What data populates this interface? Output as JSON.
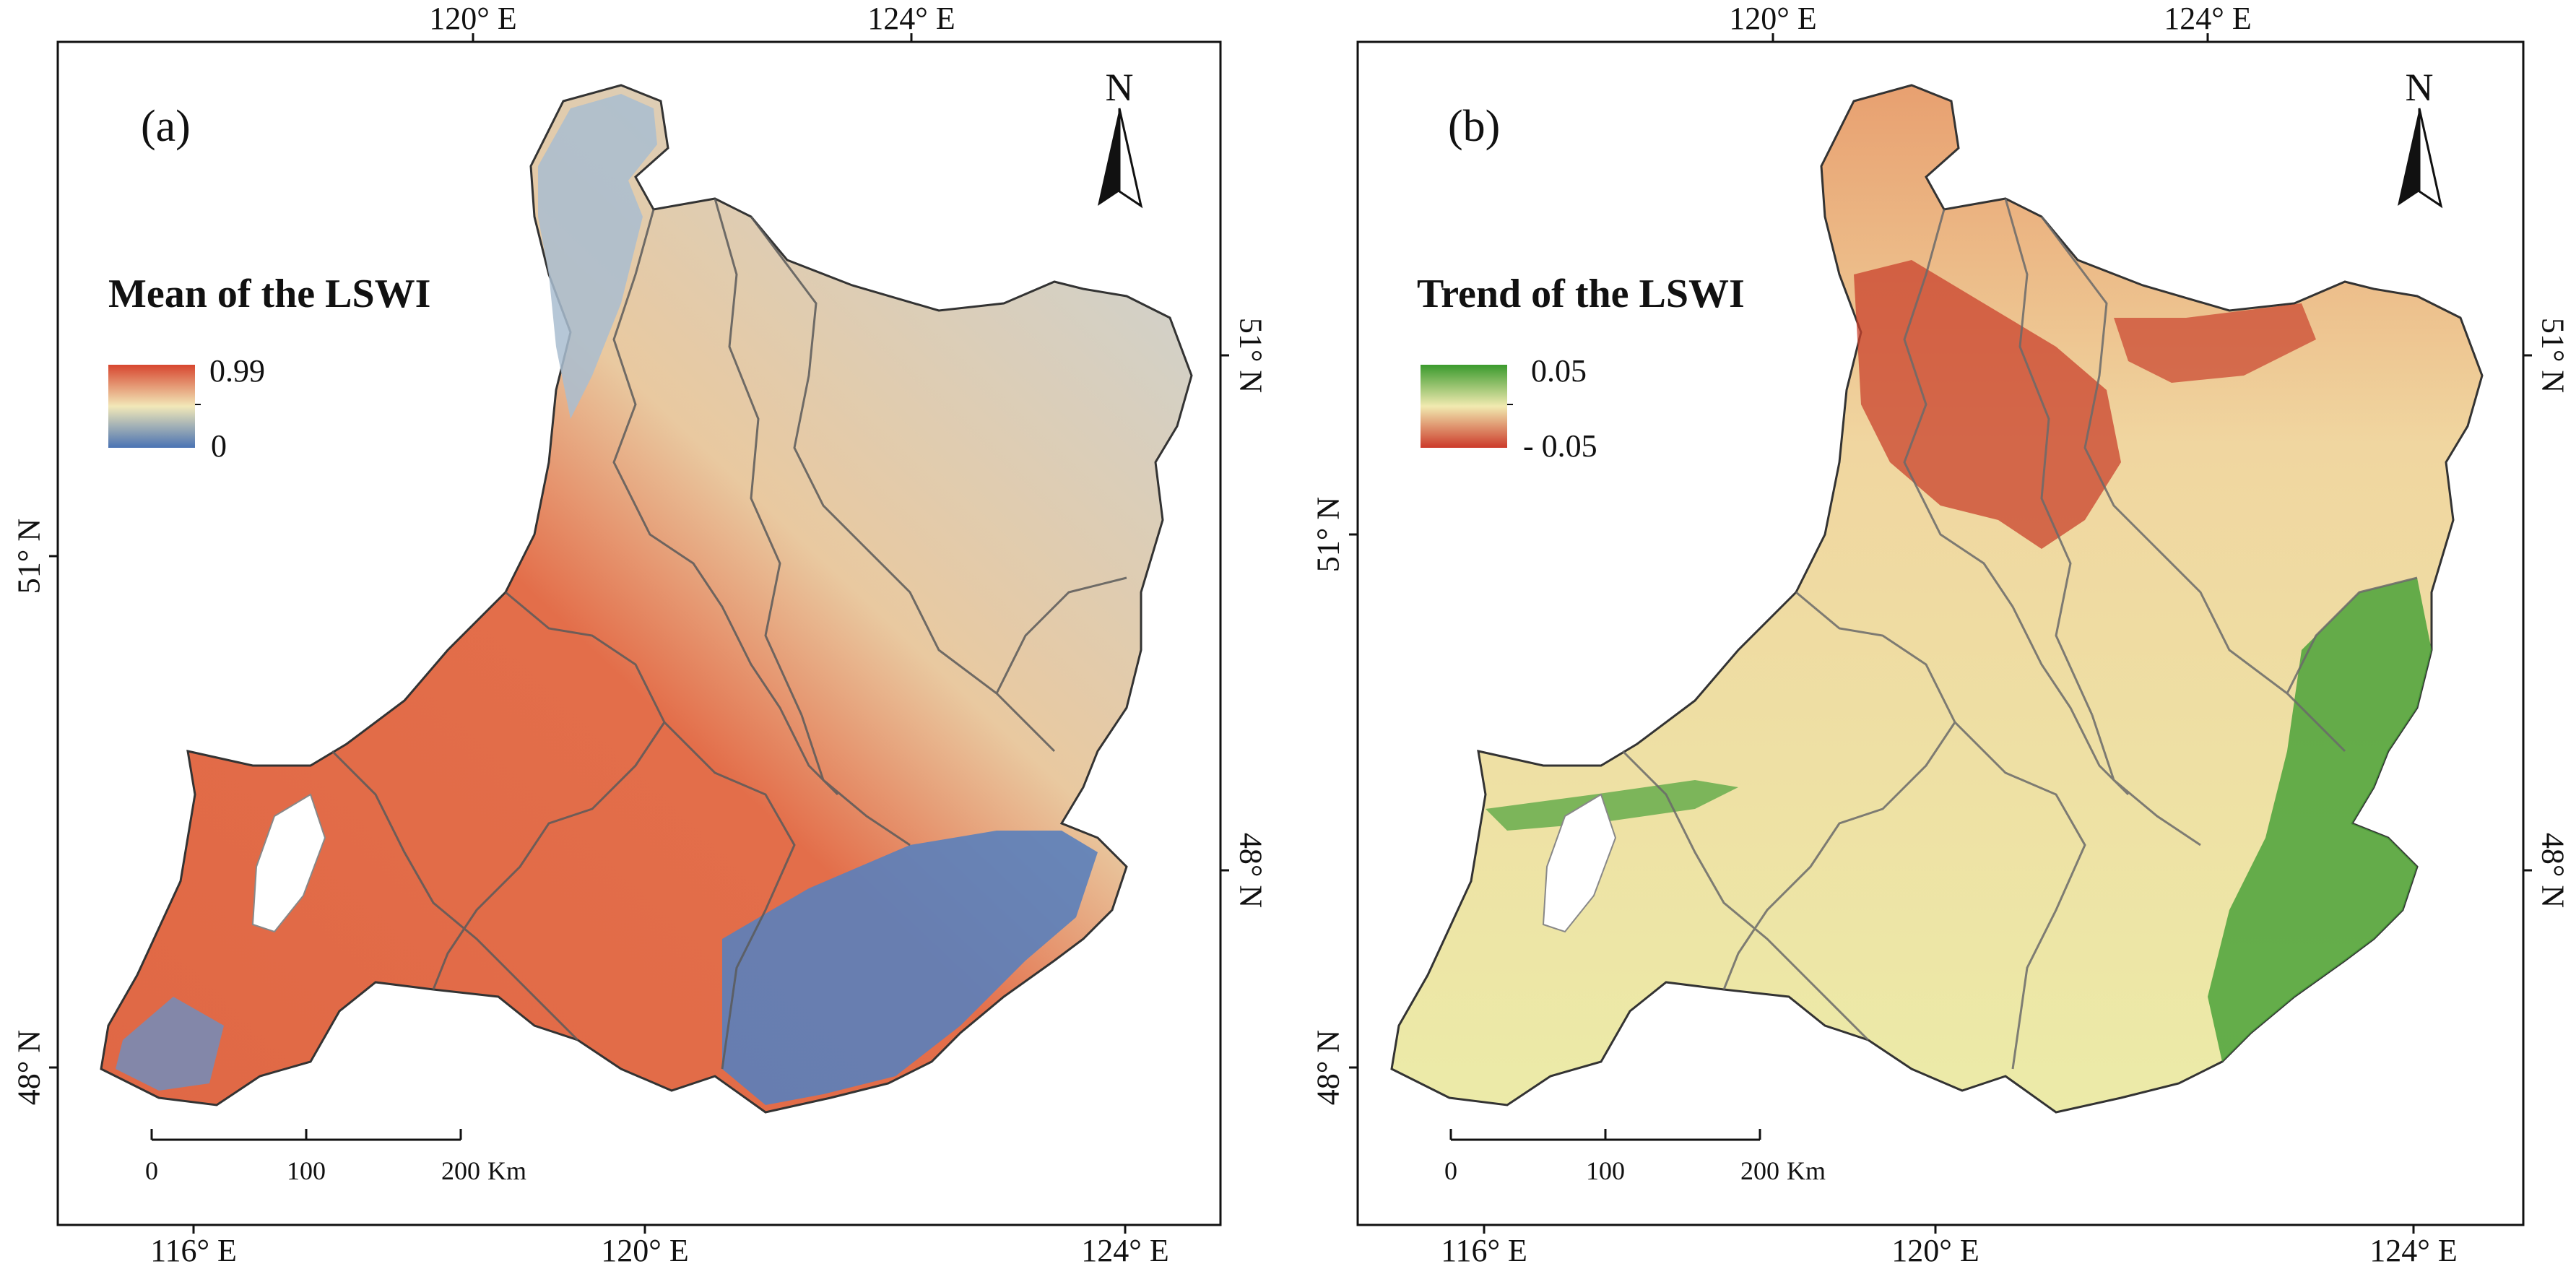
{
  "panels": [
    {
      "tag": "(a)",
      "legend_title": "Mean of the LSWI",
      "legend_max": "0.99",
      "legend_min": "0",
      "colors": {
        "high": "#d7462f",
        "mid": "#f2e8b8",
        "low": "#4a73b3",
        "region_main": "#e06845",
        "region_secondary": "#c8d1cf"
      },
      "top_ticks": [
        "120° E",
        "124° E"
      ],
      "bottom_ticks": [
        "116° E",
        "120° E",
        "124° E"
      ],
      "left_ticks": [
        "51° N",
        "48° N"
      ],
      "right_ticks": [
        "51° N",
        "48° N"
      ],
      "north_label": "N",
      "scale": {
        "labels": [
          "0",
          "100",
          "200"
        ],
        "unit": "Km"
      }
    },
    {
      "tag": "(b)",
      "legend_title": "Trend of the LSWI",
      "legend_max": "0.05",
      "legend_min": "- 0.05",
      "colors": {
        "high": "#3a9a2d",
        "mid": "#f1eab0",
        "low": "#cc3a2a",
        "region_main": "#efd19a",
        "region_secondary": "#d9e7a4"
      },
      "top_ticks": [
        "120° E",
        "124° E"
      ],
      "bottom_ticks": [
        "116° E",
        "120° E",
        "124° E"
      ],
      "left_ticks": [
        "51° N",
        "48° N"
      ],
      "right_ticks": [
        "51° N",
        "48° N"
      ],
      "north_label": "N",
      "scale": {
        "labels": [
          "0",
          "100",
          "200"
        ],
        "unit": "Km"
      }
    }
  ]
}
